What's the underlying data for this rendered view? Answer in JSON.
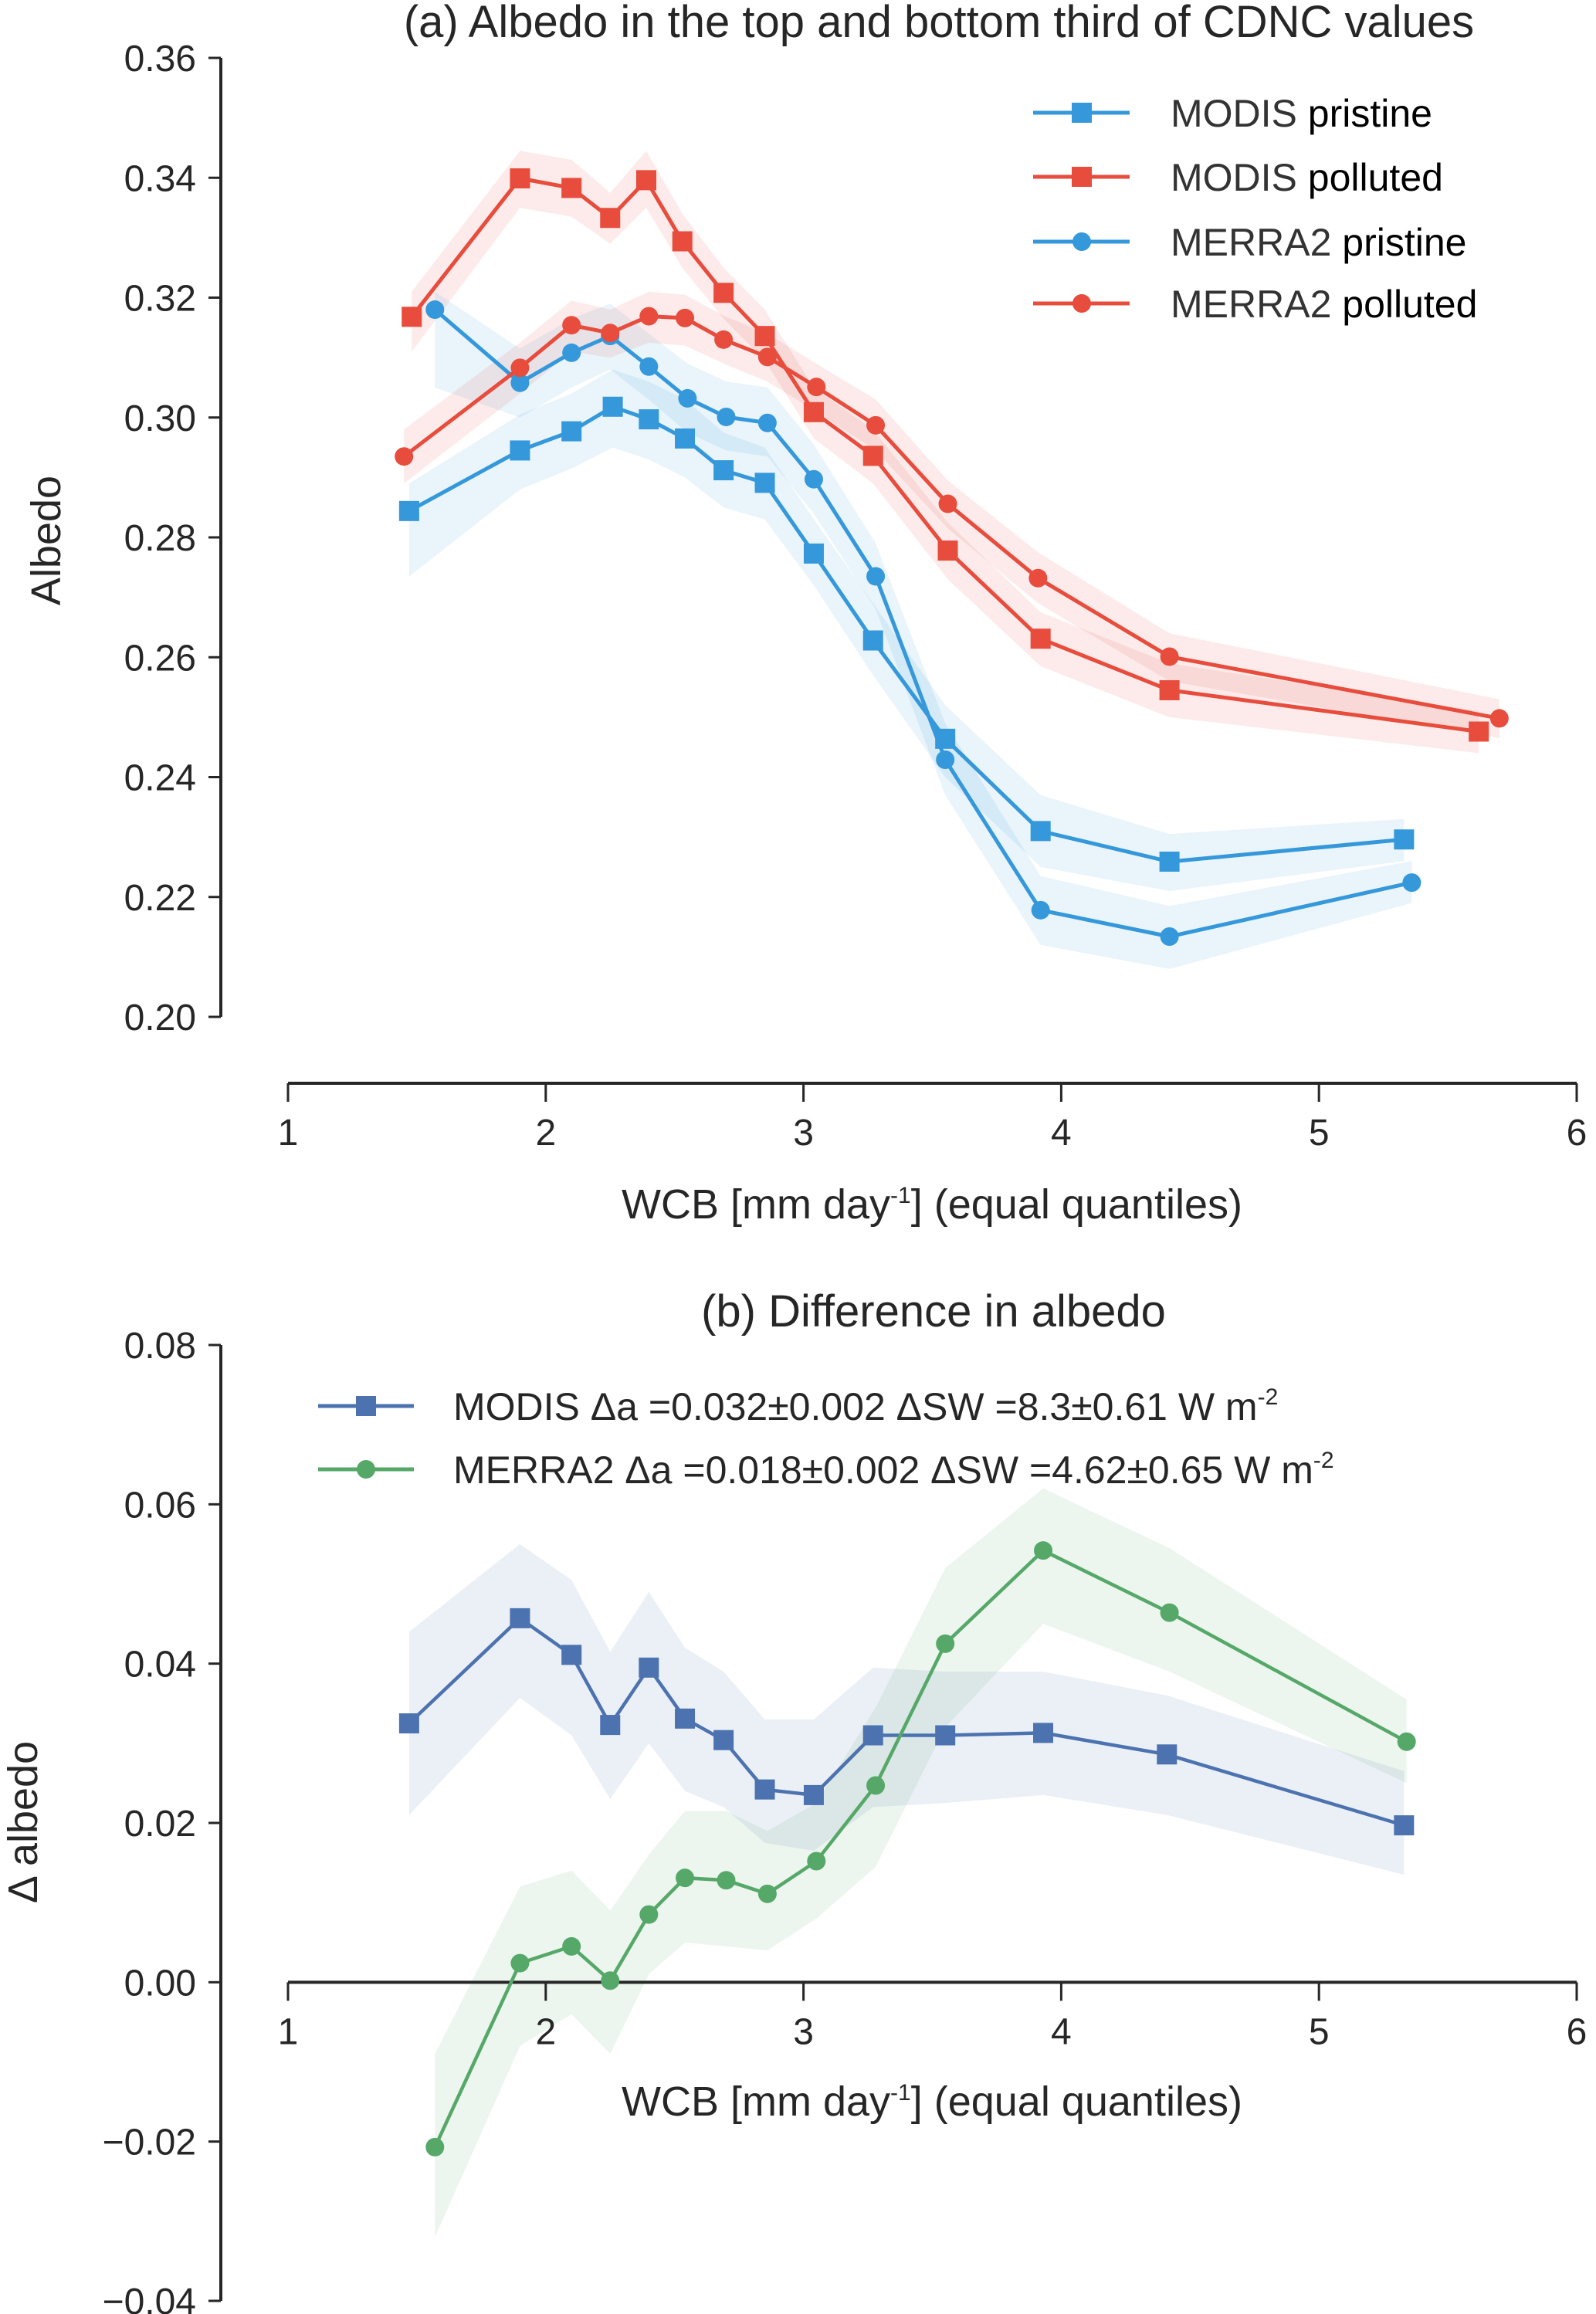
{
  "chart_data": [
    {
      "type": "line",
      "title": "(a) Albedo in the top and bottom third of CDNC values",
      "xlabel": "WCB [mm day-1]  (equal quantiles)",
      "xlabel_parts": {
        "pre": "WCB [mm day",
        "sup": "-1",
        "post": "]  (equal quantiles)"
      },
      "ylabel": "Albedo",
      "xlim": [
        1,
        6
      ],
      "ylim": [
        0.2,
        0.36
      ],
      "xticks": [
        1,
        2,
        3,
        4,
        5,
        6
      ],
      "xtick_labels": [
        "1",
        "2",
        "3",
        "4",
        "5",
        "6"
      ],
      "yticks": [
        0.2,
        0.22,
        0.24,
        0.26,
        0.28,
        0.3,
        0.32,
        0.34,
        0.36
      ],
      "ytick_labels": [
        "0.20",
        "0.22",
        "0.24",
        "0.26",
        "0.28",
        "0.30",
        "0.32",
        "0.34",
        "0.36"
      ],
      "grid": false,
      "legend_position": "top-right",
      "series": [
        {
          "name": "MODIS pristine",
          "legend_name": "MODIS",
          "legend_cond": "pristine",
          "color": "#3498db",
          "marker": "square",
          "x": [
            1.47,
            1.9,
            2.1,
            2.26,
            2.4,
            2.54,
            2.69,
            2.85,
            3.04,
            3.27,
            3.55,
            3.92,
            4.42,
            5.33
          ],
          "y": [
            0.2844,
            0.2945,
            0.2977,
            0.3018,
            0.2997,
            0.2965,
            0.2912,
            0.2891,
            0.2773,
            0.2628,
            0.2464,
            0.231,
            0.2259,
            0.2296
          ],
          "lower": [
            0.2735,
            0.288,
            0.2915,
            0.295,
            0.293,
            0.29,
            0.285,
            0.283,
            0.272,
            0.257,
            0.24,
            0.225,
            0.221,
            0.226
          ],
          "upper": [
            0.289,
            0.3005,
            0.304,
            0.308,
            0.306,
            0.303,
            0.2975,
            0.295,
            0.283,
            0.269,
            0.252,
            0.237,
            0.2305,
            0.233
          ]
        },
        {
          "name": "MODIS polluted",
          "legend_name": "MODIS",
          "legend_cond": "polluted",
          "color": "#e74c3c",
          "marker": "square",
          "x": [
            1.48,
            1.9,
            2.1,
            2.25,
            2.39,
            2.53,
            2.69,
            2.85,
            3.04,
            3.27,
            3.56,
            3.92,
            4.42,
            5.62
          ],
          "y": [
            0.3168,
            0.3399,
            0.3383,
            0.3333,
            0.3396,
            0.3294,
            0.3208,
            0.3136,
            0.3009,
            0.2936,
            0.2778,
            0.2631,
            0.2545,
            0.2476
          ],
          "lower": [
            0.311,
            0.335,
            0.3335,
            0.329,
            0.335,
            0.325,
            0.3165,
            0.3095,
            0.2965,
            0.289,
            0.273,
            0.2585,
            0.25,
            0.244
          ],
          "upper": [
            0.321,
            0.3445,
            0.343,
            0.3375,
            0.3445,
            0.334,
            0.325,
            0.318,
            0.305,
            0.298,
            0.2825,
            0.2675,
            0.259,
            0.251
          ]
        },
        {
          "name": "MERRA2 pristine",
          "legend_name": "MERRA2",
          "legend_cond": "pristine",
          "color": "#3498db",
          "marker": "circle",
          "x": [
            1.57,
            1.9,
            2.1,
            2.25,
            2.4,
            2.55,
            2.7,
            2.86,
            3.04,
            3.28,
            3.55,
            3.92,
            4.42,
            5.36
          ],
          "y": [
            0.318,
            0.3058,
            0.3108,
            0.3136,
            0.3085,
            0.3032,
            0.3001,
            0.2991,
            0.2897,
            0.2735,
            0.2429,
            0.2178,
            0.2134,
            0.2224
          ],
          "lower": [
            0.305,
            0.3,
            0.305,
            0.308,
            0.303,
            0.2975,
            0.2945,
            0.2935,
            0.284,
            0.268,
            0.237,
            0.212,
            0.208,
            0.219
          ],
          "upper": [
            0.321,
            0.3115,
            0.3165,
            0.319,
            0.314,
            0.309,
            0.306,
            0.305,
            0.2955,
            0.279,
            0.249,
            0.2235,
            0.2185,
            0.226
          ]
        },
        {
          "name": "MERRA2 polluted",
          "legend_name": "MERRA2",
          "legend_cond": "polluted",
          "color": "#e74c3c",
          "marker": "circle",
          "x": [
            1.45,
            1.9,
            2.1,
            2.25,
            2.4,
            2.54,
            2.69,
            2.86,
            3.05,
            3.28,
            3.56,
            3.91,
            4.42,
            5.7
          ],
          "y": [
            0.2935,
            0.3083,
            0.3154,
            0.3141,
            0.3169,
            0.3166,
            0.313,
            0.3101,
            0.3051,
            0.2987,
            0.2856,
            0.2732,
            0.2601,
            0.2498
          ],
          "lower": [
            0.289,
            0.304,
            0.311,
            0.31,
            0.3125,
            0.312,
            0.309,
            0.306,
            0.301,
            0.2945,
            0.2815,
            0.269,
            0.256,
            0.2465
          ],
          "upper": [
            0.298,
            0.3125,
            0.3195,
            0.318,
            0.321,
            0.3205,
            0.317,
            0.314,
            0.309,
            0.303,
            0.2895,
            0.2775,
            0.264,
            0.253
          ]
        }
      ]
    },
    {
      "type": "line",
      "title": "(b) Difference in albedo",
      "xlabel": "WCB [mm day-1]  (equal quantiles)",
      "xlabel_parts": {
        "pre": "WCB [mm day",
        "sup": "-1",
        "post": "]  (equal quantiles)"
      },
      "ylabel": "Δ albedo",
      "xlim": [
        1,
        6
      ],
      "ylim": [
        -0.04,
        0.08
      ],
      "xticks": [
        1,
        2,
        3,
        4,
        5,
        6
      ],
      "xtick_labels": [
        "1",
        "2",
        "3",
        "4",
        "5",
        "6"
      ],
      "yticks": [
        -0.04,
        -0.02,
        0.0,
        0.02,
        0.04,
        0.06,
        0.08
      ],
      "ytick_labels": [
        "−0.04",
        "−0.02",
        "0.00",
        "0.02",
        "0.04",
        "0.06",
        "0.08"
      ],
      "grid": false,
      "legend_position": "top",
      "series": [
        {
          "name": "MODIS",
          "legend_label": "MODIS Δa =0.032±0.002 ΔSW =8.3±0.61 W m",
          "legend_sup": "-2",
          "color": "#4c72b0",
          "marker": "square",
          "x": [
            1.47,
            1.9,
            2.1,
            2.25,
            2.4,
            2.54,
            2.69,
            2.85,
            3.04,
            3.27,
            3.55,
            3.93,
            4.41,
            5.33
          ],
          "y": [
            0.0325,
            0.0457,
            0.0411,
            0.0323,
            0.0395,
            0.0331,
            0.0304,
            0.0242,
            0.0235,
            0.031,
            0.031,
            0.0313,
            0.0286,
            0.0197
          ],
          "lower": [
            0.021,
            0.0357,
            0.031,
            0.023,
            0.03,
            0.024,
            0.022,
            0.0175,
            0.0165,
            0.022,
            0.0225,
            0.0235,
            0.021,
            0.0135
          ],
          "upper": [
            0.044,
            0.055,
            0.0505,
            0.0415,
            0.049,
            0.042,
            0.039,
            0.033,
            0.033,
            0.0395,
            0.039,
            0.039,
            0.036,
            0.0265
          ]
        },
        {
          "name": "MERRA2",
          "legend_label": "MERRA2 Δa =0.018±0.002 ΔSW =4.62±0.65 W m",
          "legend_sup": "-2",
          "color": "#55a868",
          "marker": "circle",
          "x": [
            1.57,
            1.9,
            2.1,
            2.25,
            2.4,
            2.54,
            2.7,
            2.86,
            3.05,
            3.28,
            3.55,
            3.93,
            4.42,
            5.34
          ],
          "y": [
            -0.0207,
            0.0024,
            0.0045,
            0.0002,
            0.0085,
            0.0131,
            0.0128,
            0.0111,
            0.0152,
            0.0247,
            0.0425,
            0.0542,
            0.0464,
            0.0302
          ],
          "lower": [
            -0.032,
            -0.008,
            -0.004,
            -0.009,
            0.001,
            0.005,
            0.0045,
            0.004,
            0.008,
            0.0145,
            0.032,
            0.045,
            0.039,
            0.025
          ],
          "upper": [
            -0.009,
            0.012,
            0.014,
            0.009,
            0.016,
            0.0215,
            0.0215,
            0.019,
            0.0225,
            0.0345,
            0.052,
            0.062,
            0.0545,
            0.0355
          ]
        }
      ]
    }
  ]
}
